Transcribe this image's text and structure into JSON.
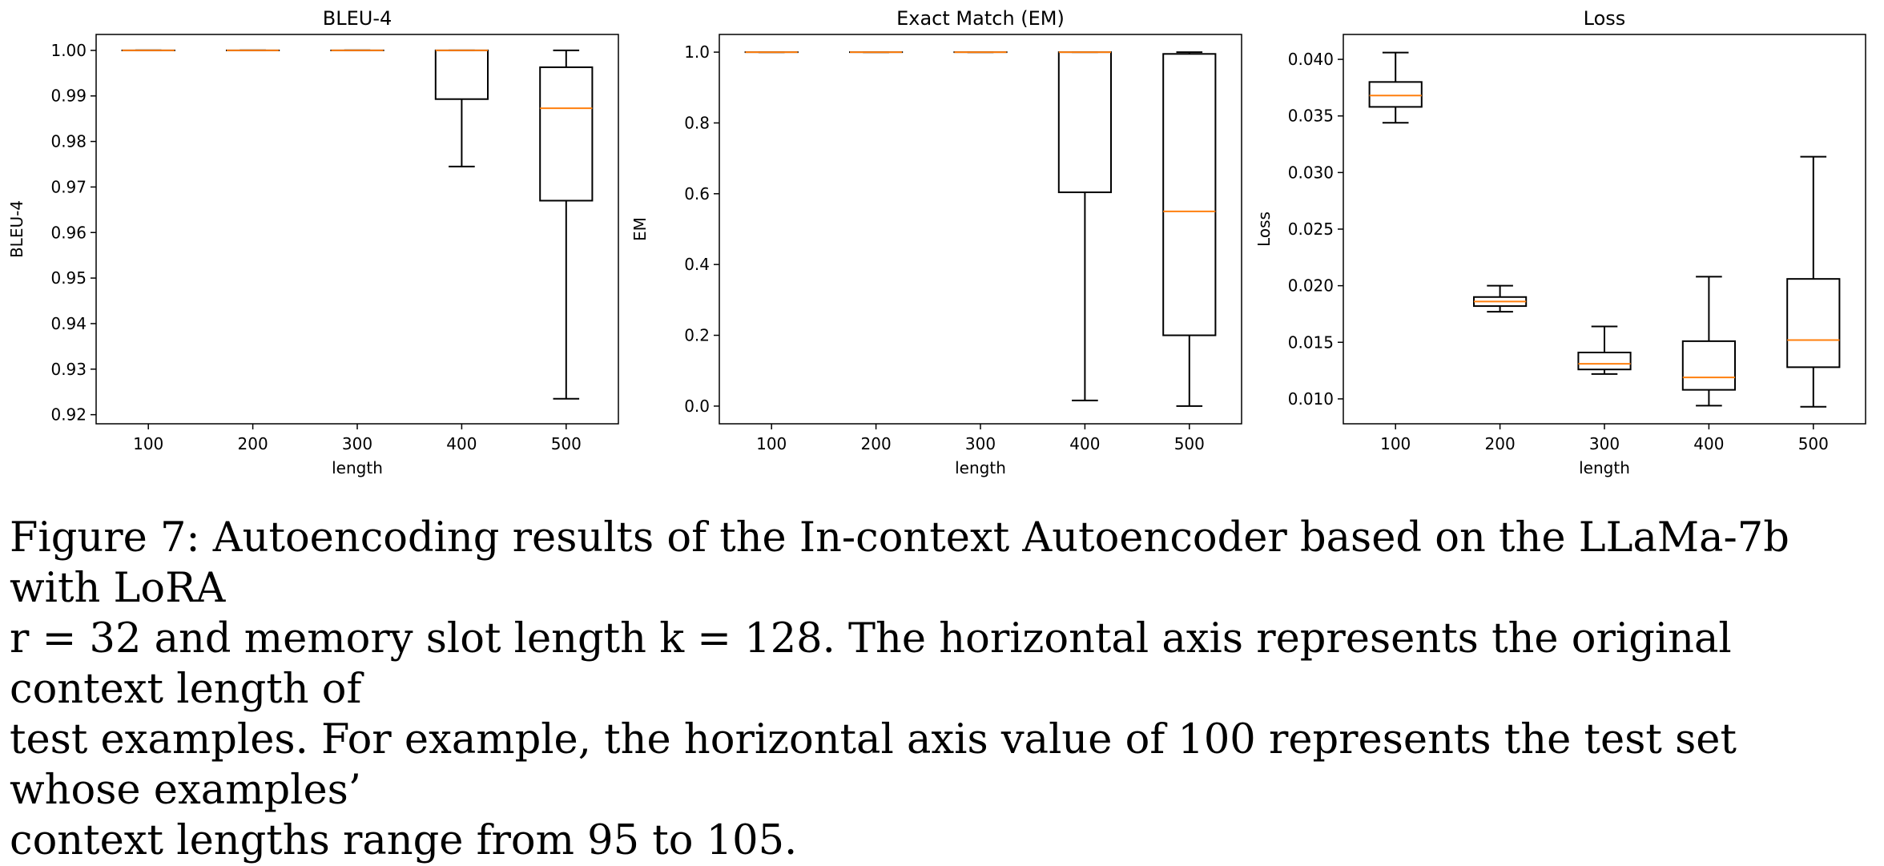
{
  "chart_data": [
    {
      "type": "box",
      "title": "BLEU-4",
      "xlabel": "length",
      "ylabel": "BLEU-4",
      "categories": [
        "100",
        "200",
        "300",
        "400",
        "500"
      ],
      "ylim": [
        0.918,
        1.0035
      ],
      "yticks": [
        0.92,
        0.93,
        0.94,
        0.95,
        0.96,
        0.97,
        0.98,
        0.99,
        1.0
      ],
      "ytick_labels": [
        "0.92",
        "0.93",
        "0.94",
        "0.95",
        "0.96",
        "0.97",
        "0.98",
        "0.99",
        "1.00"
      ],
      "boxes": [
        {
          "whisker_low": 1.0,
          "q1": 1.0,
          "median": 1.0,
          "q3": 1.0,
          "whisker_high": 1.0
        },
        {
          "whisker_low": 1.0,
          "q1": 1.0,
          "median": 1.0,
          "q3": 1.0,
          "whisker_high": 1.0
        },
        {
          "whisker_low": 1.0,
          "q1": 1.0,
          "median": 1.0,
          "q3": 1.0,
          "whisker_high": 1.0
        },
        {
          "whisker_low": 0.9745,
          "q1": 0.9893,
          "median": 1.0,
          "q3": 1.0,
          "whisker_high": 1.0
        },
        {
          "whisker_low": 0.9235,
          "q1": 0.967,
          "median": 0.9873,
          "q3": 0.9963,
          "whisker_high": 1.0
        }
      ],
      "grid": false
    },
    {
      "type": "box",
      "title": "Exact Match (EM)",
      "xlabel": "length",
      "ylabel": "EM",
      "categories": [
        "100",
        "200",
        "300",
        "400",
        "500"
      ],
      "ylim": [
        -0.05,
        1.05
      ],
      "yticks": [
        0.0,
        0.2,
        0.4,
        0.6,
        0.8,
        1.0
      ],
      "ytick_labels": [
        "0.0",
        "0.2",
        "0.4",
        "0.6",
        "0.8",
        "1.0"
      ],
      "boxes": [
        {
          "whisker_low": 1.0,
          "q1": 1.0,
          "median": 1.0,
          "q3": 1.0,
          "whisker_high": 1.0
        },
        {
          "whisker_low": 1.0,
          "q1": 1.0,
          "median": 1.0,
          "q3": 1.0,
          "whisker_high": 1.0
        },
        {
          "whisker_low": 1.0,
          "q1": 1.0,
          "median": 1.0,
          "q3": 1.0,
          "whisker_high": 1.0
        },
        {
          "whisker_low": 0.016,
          "q1": 0.604,
          "median": 1.0,
          "q3": 1.0,
          "whisker_high": 1.0
        },
        {
          "whisker_low": 0.0,
          "q1": 0.2,
          "median": 0.55,
          "q3": 0.995,
          "whisker_high": 1.0
        }
      ],
      "grid": false
    },
    {
      "type": "box",
      "title": "Loss",
      "xlabel": "length",
      "ylabel": "Loss",
      "categories": [
        "100",
        "200",
        "300",
        "400",
        "500"
      ],
      "ylim": [
        0.0078,
        0.0422
      ],
      "yticks": [
        0.01,
        0.015,
        0.02,
        0.025,
        0.03,
        0.035,
        0.04
      ],
      "ytick_labels": [
        "0.010",
        "0.015",
        "0.020",
        "0.025",
        "0.030",
        "0.035",
        "0.040"
      ],
      "boxes": [
        {
          "whisker_low": 0.0344,
          "q1": 0.0358,
          "median": 0.0368,
          "q3": 0.038,
          "whisker_high": 0.0406
        },
        {
          "whisker_low": 0.0177,
          "q1": 0.0182,
          "median": 0.0186,
          "q3": 0.019,
          "whisker_high": 0.02
        },
        {
          "whisker_low": 0.0122,
          "q1": 0.0126,
          "median": 0.0131,
          "q3": 0.0141,
          "whisker_high": 0.0164
        },
        {
          "whisker_low": 0.0094,
          "q1": 0.0108,
          "median": 0.0119,
          "q3": 0.0151,
          "whisker_high": 0.0208
        },
        {
          "whisker_low": 0.0093,
          "q1": 0.0128,
          "median": 0.0152,
          "q3": 0.0206,
          "whisker_high": 0.0314
        }
      ],
      "grid": false
    }
  ],
  "colors": {
    "median": "#ff7f0e",
    "box": "#000000"
  },
  "caption": {
    "lines": [
      "Figure 7: Autoencoding results of the In-context Autoencoder based on the LLaMa-7b with LoRA",
      "r = 32 and memory slot length k = 128. The horizontal axis represents the original context length of",
      "test examples. For example, the horizontal axis value of 100 represents the test set whose examples’",
      "context lengths range from 95 to 105."
    ]
  }
}
